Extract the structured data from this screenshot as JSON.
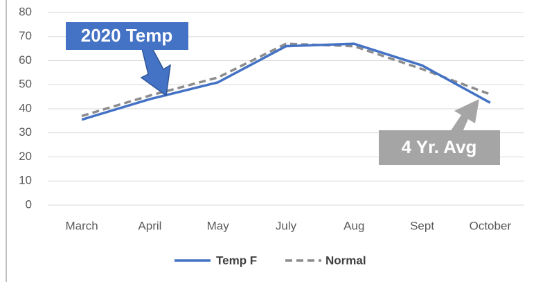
{
  "chart_data": {
    "type": "line",
    "categories": [
      "March",
      "April",
      "May",
      "July",
      "Aug",
      "Sept",
      "October"
    ],
    "series": [
      {
        "name": "Temp F",
        "color": "#4472c4",
        "values": [
          35.5,
          44,
          51,
          66,
          67,
          58,
          42.5
        ]
      },
      {
        "name": "Normal",
        "color": "#8c8c8c",
        "values": [
          37,
          45.5,
          53,
          67,
          66,
          56.5,
          46
        ]
      }
    ],
    "ylim": [
      0,
      80
    ],
    "yticks": [
      0,
      10,
      20,
      30,
      40,
      50,
      60,
      70,
      80
    ],
    "grid": true,
    "annotations": [
      {
        "text": "2020 Temp"
      },
      {
        "text": "4 Yr. Avg"
      }
    ]
  }
}
